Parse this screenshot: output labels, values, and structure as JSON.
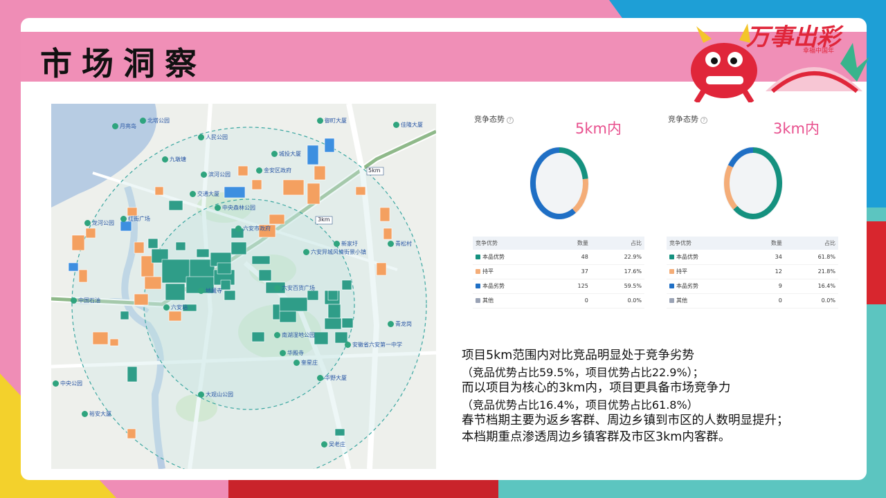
{
  "slide": {
    "title": "市场洞察",
    "badge_title": "万事出彩",
    "badge_subtitle": "幸福中国年"
  },
  "map": {
    "ring_5km_label": "5km",
    "ring_3km_label": "3km",
    "places": [
      "月亮岛",
      "北塔公园",
      "人民公园",
      "御町大厦",
      "佳隆大厦",
      "九墩塘",
      "滨河公园",
      "城投大厦",
      "金安区政府",
      "交通大厦",
      "中央森林公园",
      "龙河公园",
      "红街广场",
      "六安市政府",
      "六安异城风情街景小镇",
      "中国石油",
      "地藏寺",
      "六安站",
      "六安百货广场",
      "南湖湿地公园",
      "华殿寺",
      "安徽省六安第一中学",
      "中央公园",
      "华野大厦",
      "大观山公园",
      "裕安大厦",
      "奎星庄",
      "吴老庄",
      "新家圩",
      "青松村",
      "青龙岗"
    ]
  },
  "panels": [
    {
      "label": "竞争态势",
      "range": "5km内",
      "headers": [
        "竞争优势",
        "数量",
        "占比"
      ],
      "rows": [
        {
          "name": "本品优势",
          "count": "48",
          "pct": "22.9%",
          "color": "#15917f",
          "fraction": 0.229
        },
        {
          "name": "持平",
          "count": "37",
          "pct": "17.6%",
          "color": "#f4ad78",
          "fraction": 0.176
        },
        {
          "name": "本品劣势",
          "count": "125",
          "pct": "59.5%",
          "color": "#1f6fc5",
          "fraction": 0.595
        },
        {
          "name": "其他",
          "count": "0",
          "pct": "0.0%",
          "color": "#9aa3b5",
          "fraction": 0
        }
      ]
    },
    {
      "label": "竞争态势",
      "range": "3km内",
      "headers": [
        "竞争优势",
        "数量",
        "占比"
      ],
      "rows": [
        {
          "name": "本品优势",
          "count": "34",
          "pct": "61.8%",
          "color": "#15917f",
          "fraction": 0.618
        },
        {
          "name": "持平",
          "count": "12",
          "pct": "21.8%",
          "color": "#f4ad78",
          "fraction": 0.218
        },
        {
          "name": "本品劣势",
          "count": "9",
          "pct": "16.4%",
          "color": "#1f6fc5",
          "fraction": 0.164
        },
        {
          "name": "其他",
          "count": "0",
          "pct": "0.0%",
          "color": "#9aa3b5",
          "fraction": 0
        }
      ]
    }
  ],
  "notes": [
    "项目5km范围内对比竞品明显处于竞争劣势",
    "（竞品优势占比59.5%，项目优势占比22.9%）；",
    "而以项目为核心的3km内，项目更具备市场竞争力",
    "（竞品优势占比16.4%，项目优势占比61.8%）",
    "春节档期主要为返乡客群、周边乡镇到市区的人数明显提升；",
    "本档期重点渗透周边乡镇客群及市区3km内客群。"
  ]
}
